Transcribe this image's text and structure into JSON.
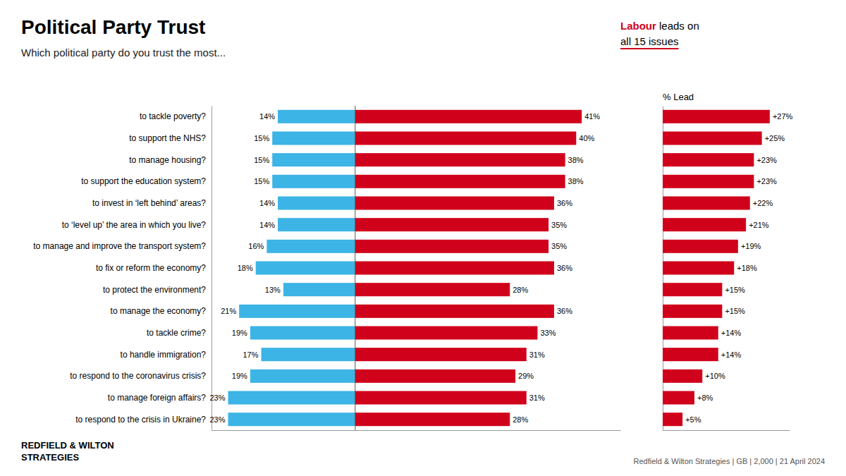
{
  "chart_data": [
    {
      "type": "bar",
      "orientation": "horizontal",
      "title": "Political Party Trust",
      "subtitle": "Which political party do you trust the most...",
      "annotations": [
        "Labour",
        " leads on",
        "all 15 issues",
        "REDFIELD & WILTON",
        "STRATEGIES",
        "Redfield & Wilton Strategies | GB | 2,000 | 21 April 2024"
      ],
      "categories": [
        "to tackle poverty?",
        "to support the NHS?",
        "to manage housing?",
        "to support the education system?",
        "to invest in ‘left behind’ areas?",
        "to ‘level up’ the area in which you live?",
        "to manage and improve the transport system?",
        "to fix or reform the economy?",
        "to protect the environment?",
        "to manage the economy?",
        "to tackle crime?",
        "to handle immigration?",
        "to respond to the coronavirus crisis?",
        "to manage foreign affairs?",
        "to respond to the crisis in Ukraine?"
      ],
      "series": [
        {
          "color": "#3cb4e5",
          "values": [
            14,
            15,
            15,
            15,
            14,
            14,
            16,
            18,
            13,
            21,
            19,
            17,
            19,
            23,
            23
          ],
          "value_labels": [
            "14%",
            "15%",
            "15%",
            "15%",
            "14%",
            "14%",
            "16%",
            "18%",
            "13%",
            "21%",
            "19%",
            "17%",
            "19%",
            "23%",
            "23%"
          ]
        },
        {
          "color": "#d0021b",
          "values": [
            41,
            40,
            38,
            38,
            36,
            35,
            35,
            36,
            28,
            36,
            33,
            31,
            29,
            31,
            28
          ],
          "value_labels": [
            "41%",
            "40%",
            "38%",
            "38%",
            "36%",
            "35%",
            "35%",
            "36%",
            "28%",
            "36%",
            "33%",
            "31%",
            "29%",
            "31%",
            "28%"
          ]
        }
      ],
      "xlim": [
        -26,
        48
      ],
      "data_labels": true,
      "tick_labels": "y",
      "grid": false
    },
    {
      "type": "bar",
      "orientation": "horizontal",
      "title": "% Lead",
      "categories": [
        null,
        null,
        null,
        null,
        null,
        null,
        null,
        null,
        null,
        null,
        null,
        null,
        null,
        null,
        null
      ],
      "series": [
        {
          "color": "#d0021b",
          "values": [
            27,
            25,
            23,
            23,
            22,
            21,
            19,
            18,
            15,
            15,
            14,
            14,
            10,
            8,
            5
          ],
          "value_labels": [
            "+27%",
            "+25%",
            "+23%",
            "+23%",
            "+22%",
            "+21%",
            "+19%",
            "+18%",
            "+15%",
            "+15%",
            "+14%",
            "+14%",
            "+10%",
            "+8%",
            "+5%"
          ]
        }
      ],
      "xlim": [
        0,
        32
      ],
      "data_labels": true,
      "tick_labels": false,
      "grid": false
    }
  ]
}
